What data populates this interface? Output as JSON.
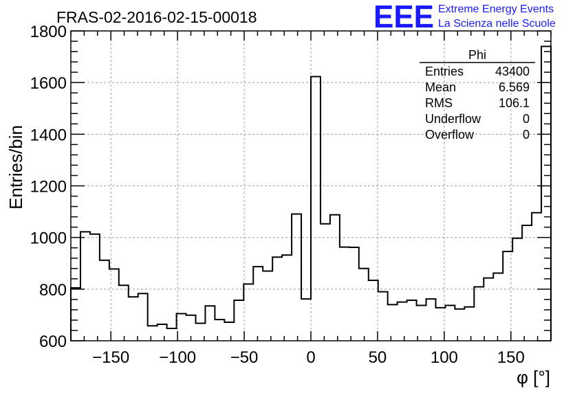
{
  "chart_data": {
    "type": "histogram",
    "title": "FRAS-02-2016-02-15-00018",
    "xlabel": "φ [°]",
    "ylabel": "Entries/bin",
    "xlim": [
      -180,
      180
    ],
    "ylim": [
      600,
      1800
    ],
    "grid": true,
    "bin_width": 7.2,
    "x_ticks": [
      -150,
      -100,
      -50,
      0,
      50,
      100,
      150
    ],
    "y_ticks": [
      600,
      800,
      1000,
      1200,
      1400,
      1600,
      1800
    ],
    "values": [
      805,
      1022,
      1013,
      912,
      878,
      815,
      770,
      783,
      658,
      664,
      648,
      705,
      699,
      668,
      735,
      682,
      672,
      757,
      820,
      887,
      870,
      924,
      932,
      1091,
      762,
      1623,
      1053,
      1088,
      963,
      962,
      880,
      834,
      790,
      740,
      750,
      757,
      737,
      762,
      728,
      737,
      723,
      731,
      809,
      843,
      862,
      946,
      997,
      1047,
      1096,
      1740
    ],
    "stats": {
      "title": "Phi",
      "rows": [
        {
          "label": "Entries",
          "value": "43400"
        },
        {
          "label": "Mean",
          "value": "6.569"
        },
        {
          "label": "RMS",
          "value": "106.1"
        },
        {
          "label": "Underflow",
          "value": "0"
        },
        {
          "label": "Overflow",
          "value": "0"
        }
      ]
    }
  },
  "logo": {
    "mark": "EEE",
    "line1": "Extreme Energy Events",
    "line2": "La Scienza nelle Scuole",
    "color": "#1a1aff"
  }
}
